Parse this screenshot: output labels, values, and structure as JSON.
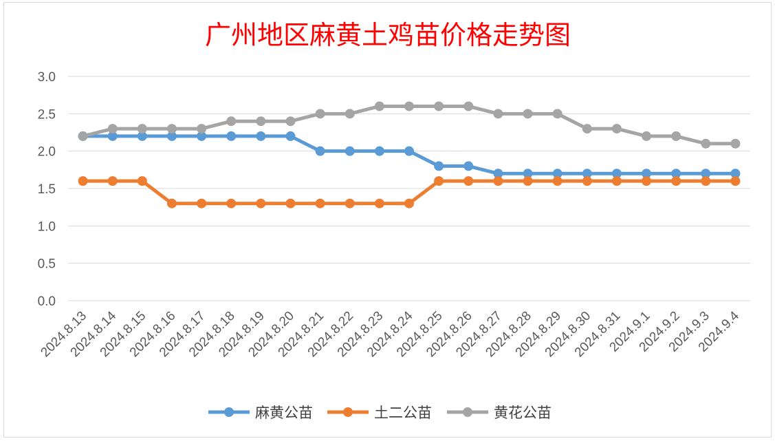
{
  "chart_data": {
    "type": "line",
    "title": "广州地区麻黄土鸡苗价格走势图",
    "categories": [
      "2024.8.13",
      "2024.8.14",
      "2024.8.15",
      "2024.8.16",
      "2024.8.17",
      "2024.8.18",
      "2024.8.19",
      "2024.8.20",
      "2024.8.21",
      "2024.8.22",
      "2024.8.23",
      "2024.8.24",
      "2024.8.25",
      "2024.8.26",
      "2024.8.27",
      "2024.8.28",
      "2024.8.29",
      "2024.8.30",
      "2024.8.31",
      "2024.9.1",
      "2024.9.2",
      "2024.9.3",
      "2024.9.4"
    ],
    "yticks": [
      "0.0",
      "0.5",
      "1.0",
      "1.5",
      "2.0",
      "2.5",
      "3.0"
    ],
    "ylim": [
      0,
      3
    ],
    "grid": true,
    "legend_position": "bottom",
    "series": [
      {
        "name": "麻黄公苗",
        "color": "#5b9bd5",
        "values": [
          2.2,
          2.2,
          2.2,
          2.2,
          2.2,
          2.2,
          2.2,
          2.2,
          2.0,
          2.0,
          2.0,
          2.0,
          1.8,
          1.8,
          1.7,
          1.7,
          1.7,
          1.7,
          1.7,
          1.7,
          1.7,
          1.7,
          1.7
        ]
      },
      {
        "name": "土二公苗",
        "color": "#ed7d31",
        "values": [
          1.6,
          1.6,
          1.6,
          1.3,
          1.3,
          1.3,
          1.3,
          1.3,
          1.3,
          1.3,
          1.3,
          1.3,
          1.6,
          1.6,
          1.6,
          1.6,
          1.6,
          1.6,
          1.6,
          1.6,
          1.6,
          1.6,
          1.6
        ]
      },
      {
        "name": "黄花公苗",
        "color": "#a5a5a5",
        "values": [
          2.2,
          2.3,
          2.3,
          2.3,
          2.3,
          2.4,
          2.4,
          2.4,
          2.5,
          2.5,
          2.6,
          2.6,
          2.6,
          2.6,
          2.5,
          2.5,
          2.5,
          2.3,
          2.3,
          2.2,
          2.2,
          2.1,
          2.1
        ]
      }
    ]
  }
}
